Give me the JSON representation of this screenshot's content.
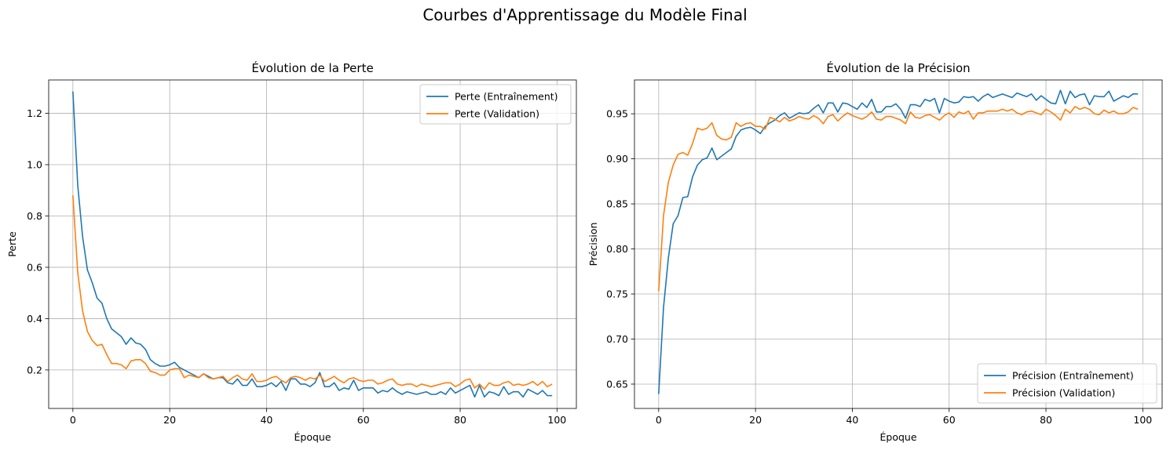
{
  "figure": {
    "title": "Courbes d'Apprentissage du Modèle Final"
  },
  "colors": {
    "train": "#1f77b4",
    "val": "#ff7f0e"
  },
  "chart_data": [
    {
      "type": "line",
      "title": "Évolution de la Perte",
      "xlabel": "Époque",
      "ylabel": "Perte",
      "xlim": [
        -5,
        104
      ],
      "ylim": [
        0.05,
        1.33
      ],
      "xticks": [
        0,
        20,
        40,
        60,
        80,
        100
      ],
      "yticks": [
        0.2,
        0.4,
        0.6,
        0.8,
        1.0,
        1.2
      ],
      "ytick_labels": [
        "0.2",
        "0.4",
        "0.6",
        "0.8",
        "1.0",
        "1.2"
      ],
      "grid": true,
      "legend": "upper-right",
      "series": [
        {
          "name": "Perte (Entraînement)",
          "values": [
            1.285,
            0.92,
            0.72,
            0.59,
            0.54,
            0.48,
            0.46,
            0.4,
            0.36,
            0.345,
            0.33,
            0.3,
            0.325,
            0.305,
            0.3,
            0.28,
            0.24,
            0.225,
            0.215,
            0.215,
            0.22,
            0.23,
            0.21,
            0.2,
            0.19,
            0.18,
            0.17,
            0.185,
            0.175,
            0.165,
            0.17,
            0.17,
            0.15,
            0.145,
            0.165,
            0.14,
            0.14,
            0.165,
            0.135,
            0.135,
            0.14,
            0.15,
            0.135,
            0.155,
            0.12,
            0.165,
            0.165,
            0.145,
            0.145,
            0.135,
            0.15,
            0.19,
            0.135,
            0.135,
            0.15,
            0.12,
            0.13,
            0.125,
            0.16,
            0.12,
            0.13,
            0.13,
            0.13,
            0.11,
            0.12,
            0.115,
            0.13,
            0.115,
            0.105,
            0.115,
            0.11,
            0.105,
            0.11,
            0.115,
            0.105,
            0.105,
            0.115,
            0.105,
            0.13,
            0.11,
            0.12,
            0.13,
            0.14,
            0.095,
            0.14,
            0.095,
            0.115,
            0.11,
            0.1,
            0.135,
            0.105,
            0.115,
            0.115,
            0.095,
            0.125,
            0.115,
            0.105,
            0.12,
            0.1,
            0.1
          ]
        },
        {
          "name": "Perte (Validation)",
          "values": [
            0.88,
            0.58,
            0.43,
            0.35,
            0.315,
            0.295,
            0.3,
            0.26,
            0.225,
            0.225,
            0.22,
            0.205,
            0.235,
            0.24,
            0.24,
            0.225,
            0.195,
            0.19,
            0.18,
            0.18,
            0.2,
            0.205,
            0.205,
            0.17,
            0.18,
            0.175,
            0.17,
            0.185,
            0.17,
            0.165,
            0.17,
            0.175,
            0.155,
            0.17,
            0.18,
            0.165,
            0.16,
            0.185,
            0.155,
            0.155,
            0.16,
            0.17,
            0.175,
            0.16,
            0.15,
            0.17,
            0.175,
            0.17,
            0.16,
            0.17,
            0.165,
            0.18,
            0.155,
            0.165,
            0.175,
            0.16,
            0.15,
            0.165,
            0.17,
            0.16,
            0.155,
            0.16,
            0.16,
            0.145,
            0.15,
            0.16,
            0.165,
            0.145,
            0.14,
            0.145,
            0.145,
            0.135,
            0.145,
            0.14,
            0.135,
            0.14,
            0.145,
            0.15,
            0.15,
            0.135,
            0.145,
            0.16,
            0.165,
            0.13,
            0.145,
            0.125,
            0.15,
            0.14,
            0.14,
            0.15,
            0.155,
            0.14,
            0.145,
            0.14,
            0.145,
            0.155,
            0.14,
            0.155,
            0.135,
            0.145
          ]
        }
      ]
    },
    {
      "type": "line",
      "title": "Évolution de la Précision",
      "xlabel": "Époque",
      "ylabel": "Précision",
      "xlim": [
        -5,
        104
      ],
      "ylim": [
        0.623,
        0.9875
      ],
      "xticks": [
        0,
        20,
        40,
        60,
        80,
        100
      ],
      "yticks": [
        0.65,
        0.7,
        0.75,
        0.8,
        0.85,
        0.9,
        0.95
      ],
      "ytick_labels": [
        "0.65",
        "0.70",
        "0.75",
        "0.80",
        "0.85",
        "0.90",
        "0.95"
      ],
      "grid": true,
      "legend": "lower-right",
      "series": [
        {
          "name": "Précision (Entraînement)",
          "values": [
            0.639,
            0.735,
            0.79,
            0.828,
            0.837,
            0.857,
            0.858,
            0.88,
            0.893,
            0.899,
            0.901,
            0.912,
            0.899,
            0.903,
            0.907,
            0.911,
            0.925,
            0.932,
            0.934,
            0.935,
            0.932,
            0.928,
            0.936,
            0.94,
            0.943,
            0.948,
            0.951,
            0.945,
            0.948,
            0.951,
            0.95,
            0.951,
            0.956,
            0.96,
            0.951,
            0.962,
            0.962,
            0.952,
            0.962,
            0.961,
            0.958,
            0.955,
            0.962,
            0.957,
            0.966,
            0.952,
            0.952,
            0.958,
            0.958,
            0.961,
            0.955,
            0.945,
            0.96,
            0.96,
            0.958,
            0.966,
            0.964,
            0.967,
            0.951,
            0.967,
            0.964,
            0.962,
            0.963,
            0.969,
            0.968,
            0.969,
            0.964,
            0.969,
            0.972,
            0.968,
            0.97,
            0.972,
            0.97,
            0.968,
            0.973,
            0.971,
            0.969,
            0.972,
            0.965,
            0.97,
            0.966,
            0.962,
            0.961,
            0.976,
            0.961,
            0.975,
            0.968,
            0.971,
            0.972,
            0.96,
            0.97,
            0.969,
            0.969,
            0.975,
            0.964,
            0.967,
            0.97,
            0.968,
            0.972,
            0.972
          ]
        },
        {
          "name": "Précision (Validation)",
          "values": [
            0.753,
            0.837,
            0.874,
            0.893,
            0.905,
            0.907,
            0.904,
            0.917,
            0.934,
            0.932,
            0.934,
            0.94,
            0.926,
            0.922,
            0.921,
            0.924,
            0.94,
            0.936,
            0.939,
            0.94,
            0.936,
            0.936,
            0.933,
            0.946,
            0.944,
            0.941,
            0.946,
            0.942,
            0.944,
            0.947,
            0.945,
            0.944,
            0.948,
            0.945,
            0.939,
            0.947,
            0.949,
            0.942,
            0.947,
            0.951,
            0.948,
            0.946,
            0.944,
            0.947,
            0.952,
            0.944,
            0.943,
            0.947,
            0.947,
            0.945,
            0.943,
            0.939,
            0.952,
            0.946,
            0.945,
            0.948,
            0.949,
            0.946,
            0.943,
            0.948,
            0.951,
            0.946,
            0.952,
            0.95,
            0.953,
            0.944,
            0.951,
            0.951,
            0.953,
            0.953,
            0.953,
            0.955,
            0.953,
            0.955,
            0.951,
            0.949,
            0.952,
            0.953,
            0.951,
            0.949,
            0.955,
            0.952,
            0.948,
            0.943,
            0.955,
            0.951,
            0.958,
            0.955,
            0.957,
            0.955,
            0.95,
            0.949,
            0.954,
            0.951,
            0.953,
            0.95,
            0.95,
            0.952,
            0.957,
            0.955
          ]
        }
      ]
    }
  ]
}
